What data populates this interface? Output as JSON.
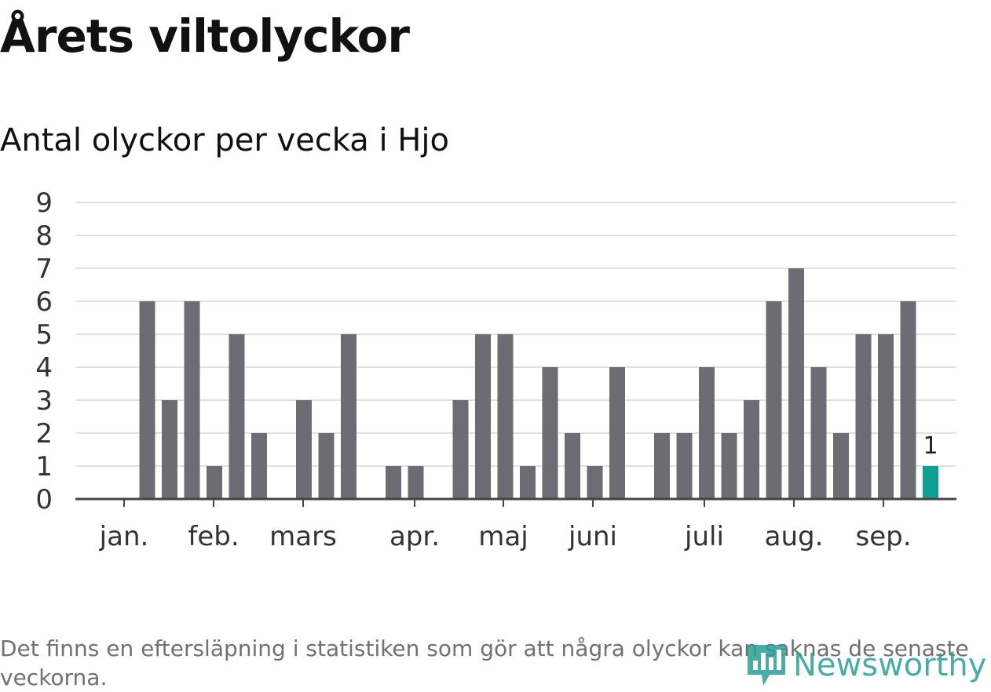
{
  "header": {
    "title": "Årets viltolyckor",
    "subtitle": "Antal olyckor per vecka i Hjo"
  },
  "footnote": "Det finns en eftersläpning i statistiken som gör att några olyckor kan saknas de senaste veckorna.",
  "brand": {
    "name": "Newsworthy",
    "logo_icon": "newsworthy-bar-chart-icon",
    "color": "#2a9d96"
  },
  "colors": {
    "bar": "#6d6c72",
    "highlight": "#0fa094",
    "grid": "#e0e0e0",
    "axis": "#444444"
  },
  "chart_data": {
    "type": "bar",
    "x_unit": "week",
    "x": [
      1,
      2,
      3,
      4,
      5,
      6,
      7,
      8,
      9,
      10,
      11,
      12,
      13,
      14,
      15,
      16,
      17,
      18,
      19,
      20,
      21,
      22,
      23,
      24,
      25,
      26,
      27,
      28,
      29,
      30,
      31,
      32,
      33,
      34,
      35,
      36,
      37
    ],
    "values": [
      0,
      6,
      3,
      6,
      1,
      5,
      2,
      0,
      3,
      2,
      5,
      0,
      1,
      1,
      0,
      3,
      5,
      5,
      1,
      4,
      2,
      1,
      4,
      0,
      2,
      2,
      4,
      2,
      3,
      6,
      7,
      4,
      2,
      5,
      5,
      6,
      1
    ],
    "highlight_index": 36,
    "annotations": [
      {
        "x": 37,
        "label": "1"
      }
    ],
    "month_labels": [
      "jan.",
      "feb.",
      "mars",
      "apr.",
      "maj",
      "juni",
      "juli",
      "aug.",
      "sep."
    ],
    "yticks": [
      0,
      1,
      2,
      3,
      4,
      5,
      6,
      7,
      8,
      9
    ],
    "ylim": [
      0,
      9
    ],
    "grid": true,
    "xlabel": "",
    "ylabel": ""
  }
}
